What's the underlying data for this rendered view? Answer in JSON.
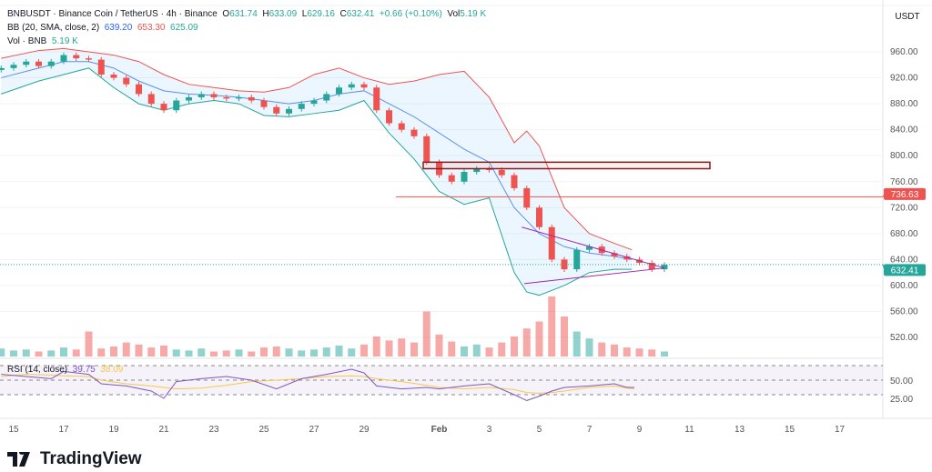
{
  "header": {
    "symbol": "BNBUSDT · Binance Coin / TetherUS · 4h · Binance",
    "o_label": "O",
    "o": "631.74",
    "h_label": "H",
    "h": "633.09",
    "l_label": "L",
    "l": "629.16",
    "c_label": "C",
    "c": "632.41",
    "change": "+0.66 (+0.10%)",
    "vol_label": "Vol",
    "vol": "5.19 K",
    "bb_label": "BB (20, SMA, close, 2)",
    "bb_mid": "639.20",
    "bb_up": "653.30",
    "bb_low": "625.09",
    "volind_label": "Vol · BNB",
    "volind": "5.19 K",
    "rsi_label": "RSI (14, close)",
    "rsi": "39.75",
    "rsi_ma": "38.09"
  },
  "axis": {
    "currency": "USDT",
    "last_price": "632.41",
    "line_price": "736.63"
  },
  "brand": "TradingView",
  "colors": {
    "up": "#26a69a",
    "down": "#ef5350",
    "bb_mid": "#5b8ff0",
    "bb_up": "#ef5350",
    "bb_low": "#26a69a",
    "rsi": "#7e57c2",
    "rsi_ma": "#f7c948"
  },
  "chart_data": {
    "type": "candlestick",
    "title": "BNBUSDT 4h",
    "ylim": [
      500,
      975
    ],
    "yticks": [
      960,
      920,
      880,
      840,
      800,
      760,
      720,
      680,
      640,
      600,
      560,
      520
    ],
    "xticks": [
      {
        "day": 15,
        "label": "15"
      },
      {
        "day": 17,
        "label": "17"
      },
      {
        "day": 19,
        "label": "19"
      },
      {
        "day": 21,
        "label": "21"
      },
      {
        "day": 23,
        "label": "23"
      },
      {
        "day": 25,
        "label": "25"
      },
      {
        "day": 27,
        "label": "27"
      },
      {
        "day": 29,
        "label": "29"
      },
      {
        "day": 32,
        "label": "Feb"
      },
      {
        "day": 34,
        "label": "3"
      },
      {
        "day": 36,
        "label": "5"
      },
      {
        "day": 38,
        "label": "7"
      },
      {
        "day": 40,
        "label": "9"
      },
      {
        "day": 42,
        "label": "11"
      },
      {
        "day": 44,
        "label": "13"
      },
      {
        "day": 46,
        "label": "15"
      },
      {
        "day": 48,
        "label": "17"
      }
    ],
    "start_day": 14.5,
    "step_days": 0.5,
    "closes": [
      935,
      940,
      945,
      938,
      945,
      955,
      950,
      948,
      925,
      920,
      910,
      895,
      880,
      870,
      885,
      890,
      895,
      890,
      888,
      890,
      885,
      875,
      865,
      872,
      880,
      885,
      895,
      905,
      910,
      905,
      870,
      850,
      840,
      830,
      790,
      770,
      760,
      775,
      780,
      778,
      770,
      750,
      720,
      690,
      640,
      625,
      655,
      660,
      650,
      645,
      640,
      635,
      625,
      632
    ],
    "volumes": [
      8,
      6,
      7,
      5,
      6,
      9,
      7,
      25,
      8,
      10,
      14,
      12,
      9,
      11,
      7,
      6,
      8,
      5,
      6,
      7,
      5,
      9,
      10,
      8,
      6,
      7,
      9,
      11,
      8,
      12,
      20,
      16,
      18,
      14,
      45,
      22,
      15,
      10,
      12,
      9,
      14,
      20,
      28,
      35,
      60,
      40,
      25,
      18,
      14,
      12,
      9,
      8,
      7,
      5
    ],
    "bb": {
      "days": [
        14.5,
        16,
        17,
        18,
        19,
        20,
        21,
        22,
        23,
        24,
        25,
        26,
        27,
        28,
        29,
        30,
        31,
        32,
        33,
        34,
        35,
        35.5,
        36,
        37,
        38,
        39,
        39.7
      ],
      "upper": [
        950,
        962,
        965,
        960,
        955,
        945,
        925,
        910,
        905,
        900,
        898,
        905,
        925,
        935,
        920,
        910,
        915,
        925,
        930,
        890,
        820,
        838,
        815,
        720,
        680,
        665,
        655
      ],
      "middle": [
        920,
        935,
        945,
        945,
        935,
        915,
        900,
        895,
        893,
        890,
        885,
        880,
        885,
        895,
        900,
        880,
        860,
        835,
        810,
        790,
        720,
        700,
        680,
        660,
        650,
        645,
        640
      ],
      "lower": [
        895,
        915,
        925,
        935,
        905,
        880,
        870,
        880,
        885,
        880,
        862,
        860,
        865,
        870,
        885,
        835,
        795,
        745,
        725,
        735,
        620,
        590,
        585,
        600,
        620,
        625,
        625
      ]
    },
    "rsi": {
      "days": [
        14.5,
        15.5,
        16.5,
        17,
        18,
        18.5,
        19.5,
        20.5,
        21,
        21.5,
        22.5,
        23.5,
        24.5,
        25.5,
        26.5,
        27.5,
        28.5,
        29,
        29.5,
        30.5,
        31.5,
        32,
        33,
        34,
        35,
        35.5,
        36,
        36.5,
        37,
        38,
        39,
        39.5,
        39.8
      ],
      "values": [
        58,
        55,
        52,
        62,
        58,
        45,
        42,
        35,
        25,
        48,
        52,
        55,
        50,
        38,
        52,
        58,
        65,
        60,
        42,
        38,
        40,
        38,
        42,
        45,
        30,
        22,
        28,
        35,
        40,
        42,
        45,
        40,
        40
      ],
      "ma": [
        55,
        58,
        57,
        56,
        55,
        50,
        45,
        42,
        40,
        38,
        39,
        43,
        48,
        50,
        52,
        55,
        56,
        55,
        52,
        48,
        43,
        40,
        38,
        40,
        37,
        33,
        32,
        33,
        35,
        40,
        42,
        39,
        38
      ]
    },
    "annotations": {
      "resistance_zone": [
        780,
        790
      ],
      "horizontal_line": 736.63,
      "triangle_upper": [
        [
          35.3,
          690
        ],
        [
          41,
          627
        ]
      ],
      "triangle_lower": [
        [
          35.4,
          603
        ],
        [
          41,
          627
        ]
      ]
    }
  }
}
